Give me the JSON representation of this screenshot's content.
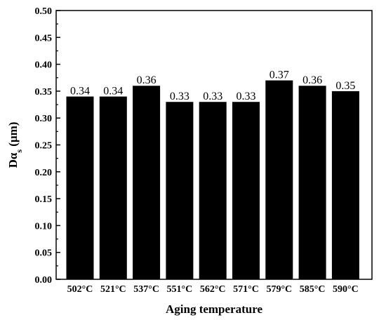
{
  "chart_data": {
    "type": "bar",
    "categories": [
      "502°C",
      "521°C",
      "537°C",
      "551°C",
      "562°C",
      "571°C",
      "579°C",
      "585°C",
      "590°C"
    ],
    "values": [
      0.34,
      0.34,
      0.36,
      0.33,
      0.33,
      0.33,
      0.37,
      0.36,
      0.35
    ],
    "data_labels": [
      "0.34",
      "0.34",
      "0.36",
      "0.33",
      "0.33",
      "0.33",
      "0.37",
      "0.36",
      "0.35"
    ],
    "title": "",
    "xlabel": "Aging temperature",
    "ylabel": {
      "main": "Dα",
      "sub": "s",
      "unit": " (μm)"
    },
    "ylim": [
      0,
      0.5
    ],
    "yticks": [
      "0.00",
      "0.05",
      "0.10",
      "0.15",
      "0.20",
      "0.25",
      "0.30",
      "0.35",
      "0.40",
      "0.45",
      "0.50"
    ],
    "grid": false,
    "bar_color": "#000000"
  }
}
